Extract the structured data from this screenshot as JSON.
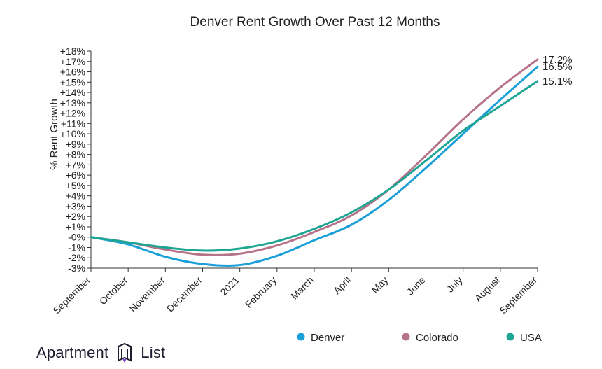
{
  "chart_data": {
    "type": "line",
    "title": "Denver Rent Growth Over Past 12 Months",
    "ylabel": "% Rent Growth",
    "xlabel": "",
    "categories": [
      "September",
      "October",
      "November",
      "December",
      "2021",
      "February",
      "March",
      "April",
      "May",
      "June",
      "July",
      "August",
      "September"
    ],
    "ylim": [
      -3,
      18
    ],
    "y_ticks": [
      -3,
      -2,
      -1,
      0,
      1,
      2,
      3,
      4,
      5,
      6,
      7,
      8,
      9,
      10,
      11,
      12,
      13,
      14,
      15,
      16,
      17,
      18
    ],
    "y_tick_labels": [
      "-3%",
      "-2%",
      "-1%",
      "-0%",
      "+1%",
      "+2%",
      "+3%",
      "+4%",
      "+5%",
      "+6%",
      "+7%",
      "+8%",
      "+9%",
      "+10%",
      "+11%",
      "+12%",
      "+13%",
      "+14%",
      "+15%",
      "+16%",
      "+17%",
      "+18%"
    ],
    "grid": false,
    "legend_position": "bottom-right",
    "series": [
      {
        "name": "Denver",
        "color": "#1a9fd9",
        "values": [
          0.0,
          -0.7,
          -1.9,
          -2.6,
          -2.7,
          -1.8,
          -0.3,
          1.2,
          3.6,
          6.7,
          10.0,
          13.3,
          16.5
        ],
        "end_label": "16.5%"
      },
      {
        "name": "Colorado",
        "color": "#b77389",
        "values": [
          0.0,
          -0.5,
          -1.2,
          -1.7,
          -1.6,
          -0.8,
          0.5,
          2.1,
          4.6,
          7.9,
          11.4,
          14.5,
          17.2
        ],
        "end_label": "17.2%"
      },
      {
        "name": "USA",
        "color": "#1fa594",
        "values": [
          0.0,
          -0.5,
          -1.0,
          -1.3,
          -1.1,
          -0.4,
          0.8,
          2.4,
          4.6,
          7.4,
          10.3,
          12.7,
          15.1
        ],
        "end_label": "15.1%"
      }
    ]
  },
  "brand": {
    "name": "Apartment List",
    "icon": "apartment-list-logo-icon"
  }
}
